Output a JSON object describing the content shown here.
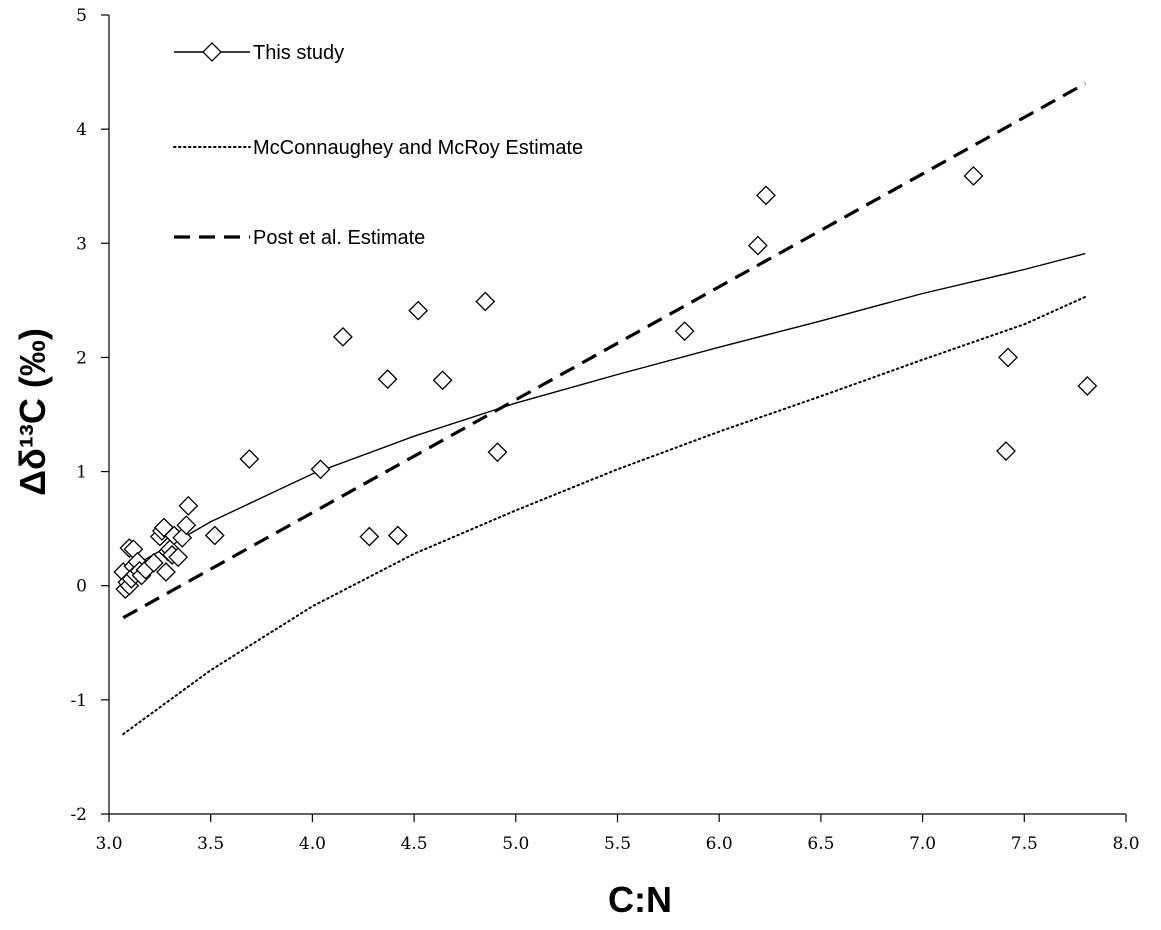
{
  "chart_data": {
    "type": "scatter",
    "xlabel": "C:N",
    "ylabel": "Δδ¹³C (‰)",
    "xlim": [
      3.0,
      8.0
    ],
    "ylim": [
      -2,
      5
    ],
    "xticks": [
      "3.0",
      "3.5",
      "4.0",
      "4.5",
      "5.0",
      "5.5",
      "6.0",
      "6.5",
      "7.0",
      "7.5",
      "8.0"
    ],
    "yticks": [
      "-2",
      "-1",
      "0",
      "1",
      "2",
      "3",
      "4",
      "5"
    ],
    "grid": false,
    "legend_position": "top-left",
    "series": [
      {
        "name": "This study",
        "kind": "scatter",
        "marker": "diamond-open",
        "x": [
          3.07,
          3.08,
          3.09,
          3.1,
          3.1,
          3.11,
          3.12,
          3.12,
          3.13,
          3.14,
          3.15,
          3.16,
          3.18,
          3.22,
          3.25,
          3.26,
          3.27,
          3.28,
          3.29,
          3.3,
          3.31,
          3.32,
          3.34,
          3.36,
          3.38,
          3.39,
          3.52,
          3.69,
          4.04,
          4.15,
          4.28,
          4.37,
          4.42,
          4.52,
          4.64,
          4.85,
          4.91,
          5.83,
          6.19,
          6.23,
          7.25,
          7.41,
          7.42,
          7.81
        ],
        "y": [
          0.12,
          -0.03,
          0.03,
          0.0,
          0.33,
          0.06,
          0.32,
          0.17,
          0.1,
          0.21,
          0.13,
          0.09,
          0.14,
          0.2,
          0.43,
          0.48,
          0.51,
          0.12,
          0.3,
          0.32,
          0.27,
          0.44,
          0.25,
          0.42,
          0.53,
          0.7,
          0.44,
          1.11,
          1.02,
          2.18,
          0.43,
          1.81,
          0.44,
          2.41,
          1.8,
          2.49,
          1.17,
          2.23,
          2.98,
          3.42,
          3.59,
          1.18,
          2.0,
          1.75
        ]
      },
      {
        "name": "This study",
        "kind": "fit-line",
        "style": "solid",
        "x": [
          3.1,
          3.5,
          4.0,
          4.5,
          5.0,
          5.5,
          6.0,
          6.5,
          7.0,
          7.5,
          7.8
        ],
        "y": [
          0.15,
          0.56,
          0.98,
          1.31,
          1.6,
          1.85,
          2.09,
          2.32,
          2.56,
          2.77,
          2.91
        ]
      },
      {
        "name": "McConnaughey and McRoy Estimate",
        "kind": "line",
        "style": "dotted",
        "x": [
          3.07,
          3.5,
          4.0,
          4.5,
          5.0,
          5.5,
          6.0,
          6.5,
          7.0,
          7.5,
          7.8
        ],
        "y": [
          -1.3,
          -0.74,
          -0.18,
          0.28,
          0.66,
          1.02,
          1.35,
          1.66,
          1.98,
          2.29,
          2.53
        ]
      },
      {
        "name": "Post et al. Estimate",
        "kind": "line",
        "style": "dashed",
        "x": [
          3.07,
          7.8
        ],
        "y": [
          -0.28,
          4.4
        ]
      }
    ]
  }
}
